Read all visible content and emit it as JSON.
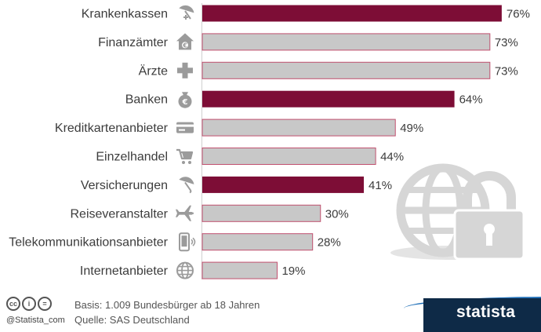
{
  "chart_data": {
    "type": "bar",
    "orientation": "horizontal",
    "categories": [
      "Krankenkassen",
      "Finanzämter",
      "Ärzte",
      "Banken",
      "Kreditkartenanbieter",
      "Einzelhandel",
      "Versicherungen",
      "Reiseveranstalter",
      "Telekommunikationsanbieter",
      "Internetanbieter"
    ],
    "values": [
      76,
      73,
      73,
      64,
      49,
      44,
      41,
      30,
      28,
      19
    ],
    "value_labels": [
      "76%",
      "73%",
      "73%",
      "64%",
      "49%",
      "44%",
      "41%",
      "30%",
      "28%",
      "19%"
    ],
    "highlighted": [
      true,
      false,
      false,
      true,
      false,
      false,
      true,
      false,
      false,
      false
    ],
    "icons": [
      "umbrella-plus-icon",
      "house-euro-icon",
      "medical-cross-icon",
      "money-bag-euro-icon",
      "credit-card-icon",
      "shopping-cart-icon",
      "umbrella-icon",
      "airplane-icon",
      "smartphone-icon",
      "globe-icon"
    ],
    "xlim": [
      0,
      100
    ],
    "grid": false,
    "legend": "none",
    "colors": {
      "highlight": "#7d0d36",
      "normal": "#c8c8c8",
      "normal_stroke": "#c0506f",
      "text": "#3c3c3c",
      "icon": "#9b9b9b",
      "decoration": "#d6d6d6"
    }
  },
  "footer": {
    "cc_symbols": [
      "cc",
      "i",
      "="
    ],
    "credit": "@Statista_com",
    "basis": "Basis: 1.009 Bundesbürger ab 18 Jahren",
    "source": "Quelle: SAS Deutschland",
    "brand": "statista",
    "brand_colors": {
      "dark": "#0e2a47",
      "accent": "#1f6fb8"
    }
  }
}
